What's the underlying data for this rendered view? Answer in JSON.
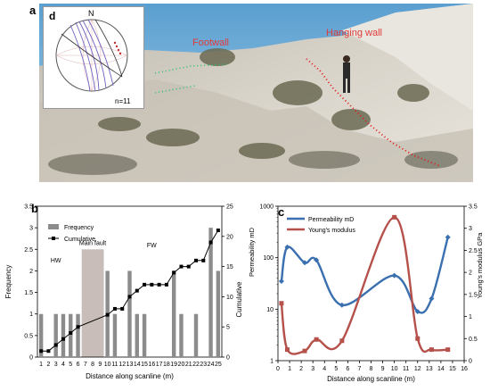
{
  "panels": {
    "a": {
      "label": "a",
      "footwall_text": "Footwall",
      "hanging_wall_text": "Hanging wall",
      "inset": {
        "label": "d",
        "north": "N",
        "count": "n=11"
      }
    },
    "b": {
      "label": "b"
    },
    "c": {
      "label": "c"
    }
  },
  "chart_data": [
    {
      "type": "bar",
      "panel": "b",
      "xlabel": "Distance along scanline (m)",
      "ylabel": "Frequency",
      "y2label": "Cumulative",
      "ylim": [
        0,
        3.5
      ],
      "y2lim": [
        0,
        25
      ],
      "yticks": [
        "0",
        "0.5",
        "1",
        "1.5",
        "2",
        "2.5",
        "3",
        "3.5"
      ],
      "y2ticks": [
        "0",
        "5",
        "10",
        "15",
        "20",
        "25"
      ],
      "categories": [
        "1",
        "2",
        "3",
        "4",
        "5",
        "6",
        "7",
        "8",
        "9",
        "10",
        "11",
        "12",
        "13",
        "14",
        "15",
        "16",
        "17",
        "18",
        "19",
        "20",
        "21",
        "22",
        "23",
        "24",
        "25"
      ],
      "annotations": [
        "HW",
        "Main fault",
        "FW"
      ],
      "legend": {
        "position": "top-left",
        "entries": [
          "Frequency",
          "Cumulative"
        ]
      },
      "series": [
        {
          "name": "Frequency",
          "kind": "bar",
          "x": [
            1,
            3,
            4,
            5,
            6,
            10,
            11,
            13,
            14,
            15,
            19,
            20,
            22,
            24,
            25
          ],
          "values": [
            1,
            1,
            1,
            1,
            1,
            2,
            1,
            2,
            1,
            1,
            2,
            1,
            1,
            3,
            2
          ]
        },
        {
          "name": "Cumulative",
          "kind": "line",
          "x": [
            1,
            2,
            3,
            4,
            5,
            6,
            10,
            11,
            12,
            13,
            14,
            15,
            16,
            17,
            18,
            19,
            20,
            21,
            22,
            23,
            24,
            25
          ],
          "values": [
            1,
            1,
            2,
            3,
            4,
            5,
            7,
            8,
            8,
            10,
            11,
            12,
            12,
            12,
            12,
            14,
            15,
            15,
            16,
            16,
            19,
            21
          ]
        }
      ],
      "colors": {
        "bar": "#8c8c8c",
        "line": "#000000",
        "fault_zone": "#c8bdb8"
      }
    },
    {
      "type": "line",
      "panel": "c",
      "xlabel": "Distance along scanline (m)",
      "ylabel": "Permeability mD",
      "y2label": "Young's modulus GPa",
      "yscale": "log",
      "ylim": [
        1,
        1000
      ],
      "yticks": [
        "1",
        "10",
        "100",
        "1000"
      ],
      "y2lim": [
        0,
        3.5
      ],
      "y2ticks": [
        "0",
        "0.5",
        "1",
        "1.5",
        "2",
        "2.5",
        "3",
        "3.5"
      ],
      "xlim": [
        0,
        16
      ],
      "xticks": [
        "0",
        "1",
        "2",
        "3",
        "4",
        "5",
        "6",
        "7",
        "8",
        "9",
        "10",
        "11",
        "12",
        "13",
        "14",
        "15",
        "16"
      ],
      "legend": {
        "position": "top-left",
        "entries": [
          "Permeability mD",
          "Young's modulus"
        ]
      },
      "series": [
        {
          "name": "Permeability mD",
          "axis": "left",
          "color": "#3a6fb0",
          "x": [
            0.3,
            0.8,
            2.3,
            3.3,
            5.5,
            10.0,
            12.0,
            13.2,
            14.6
          ],
          "values": [
            35,
            160,
            80,
            90,
            12,
            45,
            9,
            16,
            250
          ]
        },
        {
          "name": "Young's modulus",
          "axis": "right",
          "color": "#b5504a",
          "x": [
            0.3,
            0.8,
            2.3,
            3.3,
            5.5,
            10.0,
            12.0,
            13.2,
            14.6
          ],
          "values": [
            1.3,
            0.25,
            0.22,
            0.48,
            0.45,
            3.25,
            0.5,
            0.25,
            0.25
          ]
        }
      ]
    }
  ]
}
